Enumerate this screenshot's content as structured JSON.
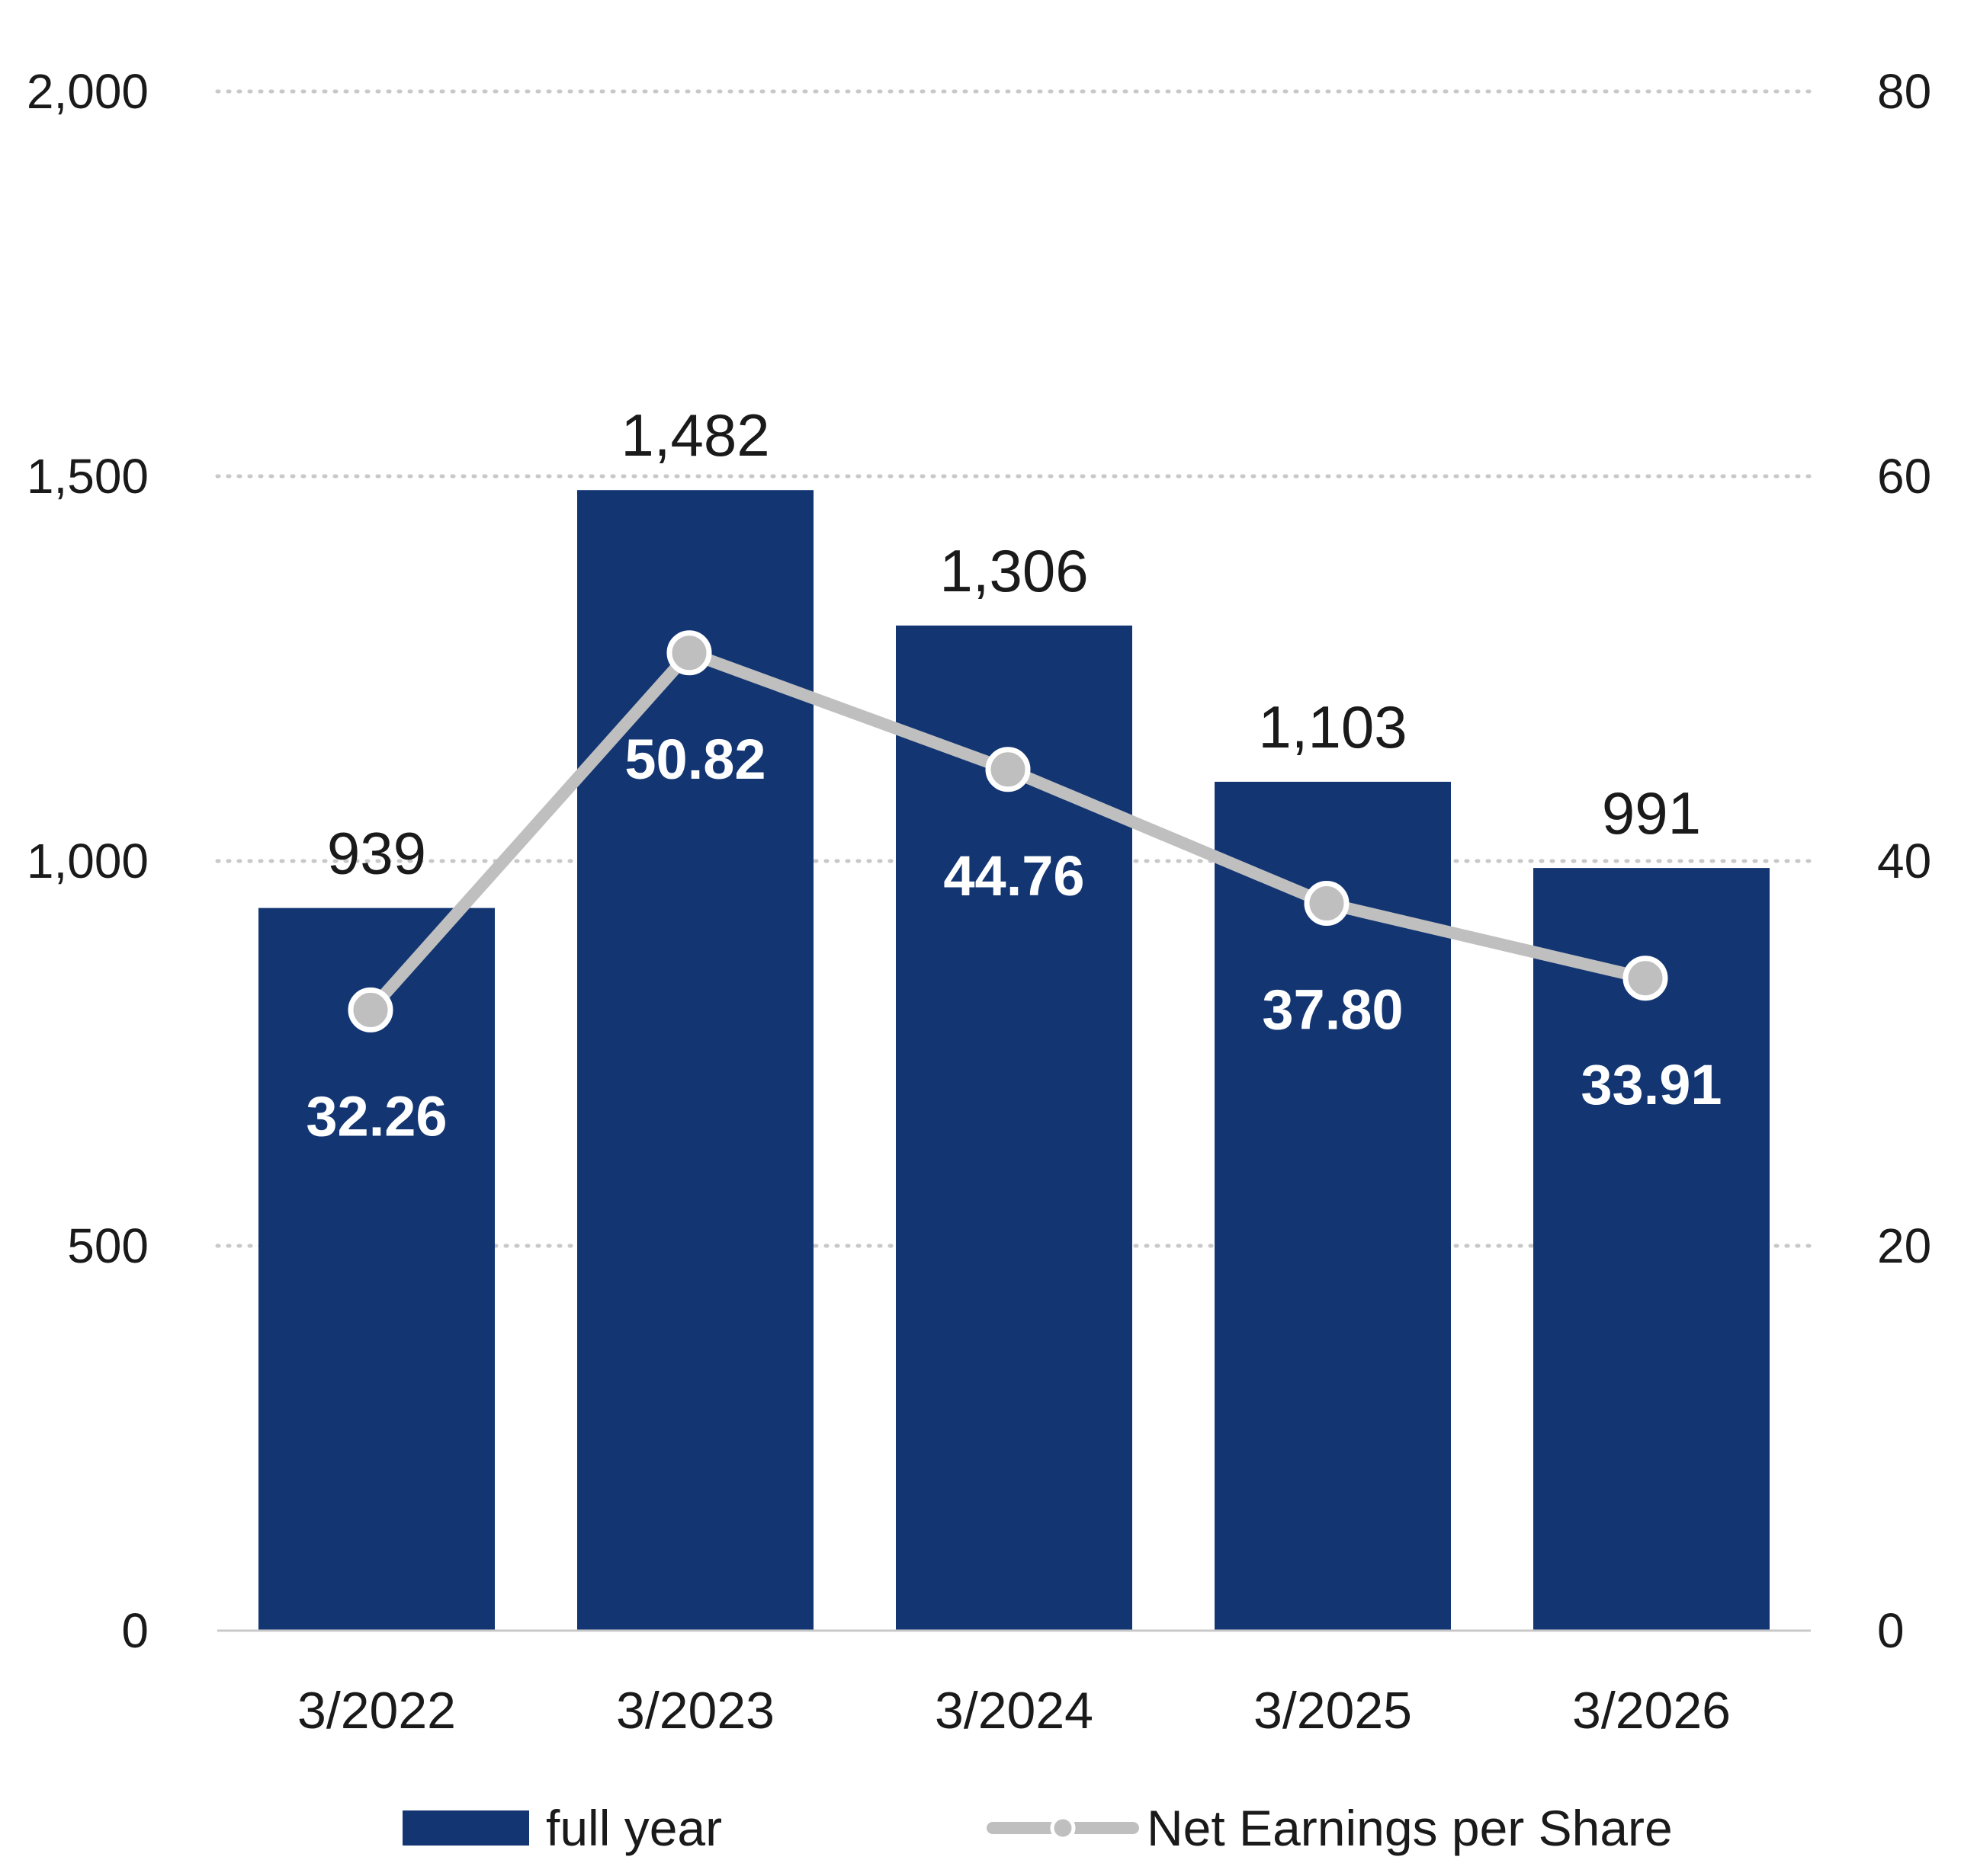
{
  "chart_data": {
    "type": "bar",
    "categories": [
      "3/2022",
      "3/2023",
      "3/2024",
      "3/2025",
      "3/2026"
    ],
    "series": [
      {
        "name": "full year",
        "type": "bar",
        "axis": "left",
        "values": [
          939,
          1482,
          1306,
          1103,
          991
        ],
        "labels": [
          "939",
          "1,482",
          "1,306",
          "1,103",
          "991"
        ]
      },
      {
        "name": "Net Earnings per Share",
        "type": "line",
        "axis": "right",
        "values": [
          32.26,
          50.82,
          44.76,
          37.8,
          33.91
        ],
        "labels": [
          "32.26",
          "50.82",
          "44.76",
          "37.80",
          "33.91"
        ]
      }
    ],
    "y_left": {
      "min": 0,
      "max": 2000,
      "ticks": [
        0,
        500,
        1000,
        1500,
        2000
      ],
      "tick_labels": [
        "0",
        "500",
        "1,000",
        "1,500",
        "2,000"
      ]
    },
    "y_right": {
      "min": 0,
      "max": 80,
      "ticks": [
        0,
        20,
        40,
        60,
        80
      ],
      "tick_labels": [
        "0",
        "20",
        "40",
        "60",
        "80"
      ]
    },
    "grid": "horizontal dotted",
    "legend": "bottom",
    "colors": {
      "bar": "#133673",
      "line": "#bfbfbf",
      "grid": "#c8c8c8",
      "marker_fill": "#bfbfbf"
    }
  }
}
